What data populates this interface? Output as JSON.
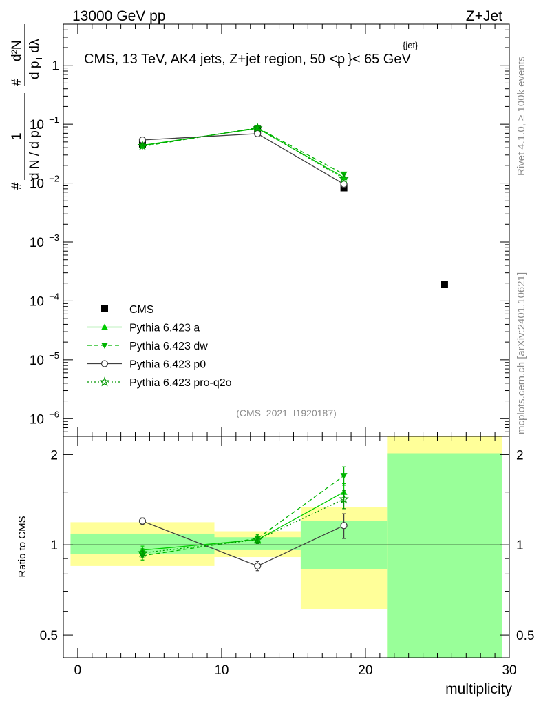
{
  "header": {
    "left": "13000 GeV pp",
    "right": "Z+Jet"
  },
  "side_labels": {
    "rivet": "Rivet 4.1.0, ≥ 100k events",
    "mcplots": "mcplots.cern.ch [arXiv:2401.10621]"
  },
  "colors": {
    "data": "#000000",
    "pythia_a": "#00cc00",
    "pythia_dw": "#00b400",
    "pythia_p0": "#404040",
    "pythia_proq2o": "#009600",
    "band_inner": "#99ff99",
    "band_outer": "#ffff99"
  },
  "chart_data": [
    {
      "type": "scatter",
      "title": "CMS, 13 TeV, AK4 jets, Z+jet region, 50 <p_T^{jet}< 65 GeV",
      "title_parts": {
        "main": "CMS, 13 TeV, AK4 jets, Z+jet region, 50 <p",
        "sup": "{jet}",
        "sub": "T",
        "tail": "}< 65 GeV"
      },
      "ylabel": "1/(dN/dp_T) d²N/(dp_T dλ)",
      "ylabel_parts": {
        "hash": "#",
        "one": "1",
        "den": "d N / d p",
        "sub": "T",
        "num": "d²N",
        "den2": "d p",
        "lam": "dλ"
      },
      "yscale": "log",
      "ylim": [
        5e-07,
        5
      ],
      "yticks": [
        {
          "value": 1,
          "label": "1"
        },
        {
          "value": 0.1,
          "label": "10",
          "exp": "−1"
        },
        {
          "value": 0.01,
          "label": "10",
          "exp": "−2"
        },
        {
          "value": 0.001,
          "label": "10",
          "exp": "−3"
        },
        {
          "value": 0.0001,
          "label": "10",
          "exp": "−4"
        },
        {
          "value": 1e-05,
          "label": "10",
          "exp": "−5"
        },
        {
          "value": 1e-06,
          "label": "10",
          "exp": "−6"
        }
      ],
      "analysis_tag": "(CMS_2021_I1920187)",
      "legend": [
        "CMS",
        "Pythia 6.423 a",
        "Pythia 6.423 dw",
        "Pythia 6.423 p0",
        "Pythia 6.423 pro-q2o"
      ],
      "legend_position": "lower-left",
      "series": [
        {
          "name": "CMS",
          "style": "square",
          "x": [
            4.5,
            12.5,
            18.5,
            25.5
          ],
          "y": [
            0.046,
            0.082,
            0.0083,
            0.00019
          ]
        },
        {
          "name": "Pythia 6.423 a",
          "style": "solid-triangle-up",
          "x": [
            4.5,
            12.5,
            18.5
          ],
          "y": [
            0.044,
            0.085,
            0.0125
          ]
        },
        {
          "name": "Pythia 6.423 dw",
          "style": "dashed-triangle-down",
          "x": [
            4.5,
            12.5,
            18.5
          ],
          "y": [
            0.042,
            0.087,
            0.0141
          ]
        },
        {
          "name": "Pythia 6.423 p0",
          "style": "solid-open-circle",
          "x": [
            4.5,
            12.5,
            18.5
          ],
          "y": [
            0.054,
            0.069,
            0.0096
          ]
        },
        {
          "name": "Pythia 6.423 pro-q2o",
          "style": "dotted-star",
          "x": [
            4.5,
            12.5,
            18.5
          ],
          "y": [
            0.043,
            0.086,
            0.0119
          ]
        }
      ]
    },
    {
      "type": "scatter",
      "ylabel": "Ratio to CMS",
      "xlabel": "multiplicity",
      "yscale": "log",
      "xlim": [
        -1,
        30
      ],
      "ylim": [
        0.42,
        2.3
      ],
      "xticks": [
        0,
        10,
        20,
        30
      ],
      "yticks": [
        {
          "value": 0.5,
          "label": "0.5"
        },
        {
          "value": 1,
          "label": "1"
        },
        {
          "value": 2,
          "label": "2"
        }
      ],
      "bands": [
        {
          "x0": -0.5,
          "x1": 9.5,
          "inner": [
            0.93,
            1.09
          ],
          "outer": [
            0.85,
            1.19
          ]
        },
        {
          "x0": 9.5,
          "x1": 15.5,
          "inner": [
            0.96,
            1.06
          ],
          "outer": [
            0.91,
            1.11
          ]
        },
        {
          "x0": 15.5,
          "x1": 21.5,
          "inner": [
            0.83,
            1.2
          ],
          "outer": [
            0.61,
            1.34
          ]
        },
        {
          "x0": 21.5,
          "x1": 29.5,
          "inner": [
            0.42,
            2.02
          ],
          "outer": [
            0.42,
            2.3
          ]
        }
      ],
      "series": [
        {
          "name": "Pythia 6.423 a",
          "x": [
            4.5,
            12.5,
            18.5
          ],
          "y": [
            0.96,
            1.04,
            1.5
          ],
          "err": [
            0.03,
            0.03,
            0.1
          ]
        },
        {
          "name": "Pythia 6.423 dw",
          "x": [
            4.5,
            12.5,
            18.5
          ],
          "y": [
            0.92,
            1.05,
            1.7
          ],
          "err": [
            0.03,
            0.03,
            0.12
          ]
        },
        {
          "name": "Pythia 6.423 p0",
          "x": [
            4.5,
            12.5,
            18.5
          ],
          "y": [
            1.2,
            0.85,
            1.16
          ],
          "err": [
            0.03,
            0.03,
            0.11
          ]
        },
        {
          "name": "Pythia 6.423 pro-q2o",
          "x": [
            4.5,
            12.5,
            18.5
          ],
          "y": [
            0.94,
            1.04,
            1.42
          ],
          "err": [
            0.03,
            0.03,
            0.1
          ]
        }
      ]
    }
  ]
}
